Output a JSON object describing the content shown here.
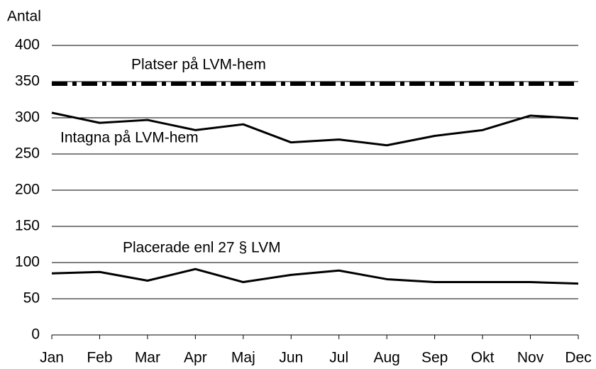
{
  "chart_data": {
    "type": "line",
    "y_axis_label": "Antal",
    "categories": [
      "Jan",
      "Feb",
      "Mar",
      "Apr",
      "Maj",
      "Jun",
      "Jul",
      "Aug",
      "Sep",
      "Okt",
      "Nov",
      "Dec"
    ],
    "series": [
      {
        "name": "Platser  på LVM-hem",
        "color": "#000000",
        "style": "dash-dot",
        "values": [
          347,
          347,
          347,
          347,
          347,
          347,
          347,
          347,
          347,
          347,
          347,
          347
        ]
      },
      {
        "name": "Intagna på LVM-hem",
        "color": "#000000",
        "style": "solid",
        "values": [
          307,
          293,
          297,
          283,
          291,
          266,
          270,
          262,
          275,
          283,
          303,
          299
        ]
      },
      {
        "name": "Placerade enl 27 § LVM",
        "color": "#000000",
        "style": "solid",
        "values": [
          85,
          87,
          75,
          91,
          73,
          83,
          89,
          77,
          73,
          73,
          73,
          71
        ]
      }
    ],
    "ylim": [
      0,
      400
    ],
    "yticks": [
      0,
      50,
      100,
      150,
      200,
      250,
      300,
      350,
      400
    ],
    "grid": true
  }
}
